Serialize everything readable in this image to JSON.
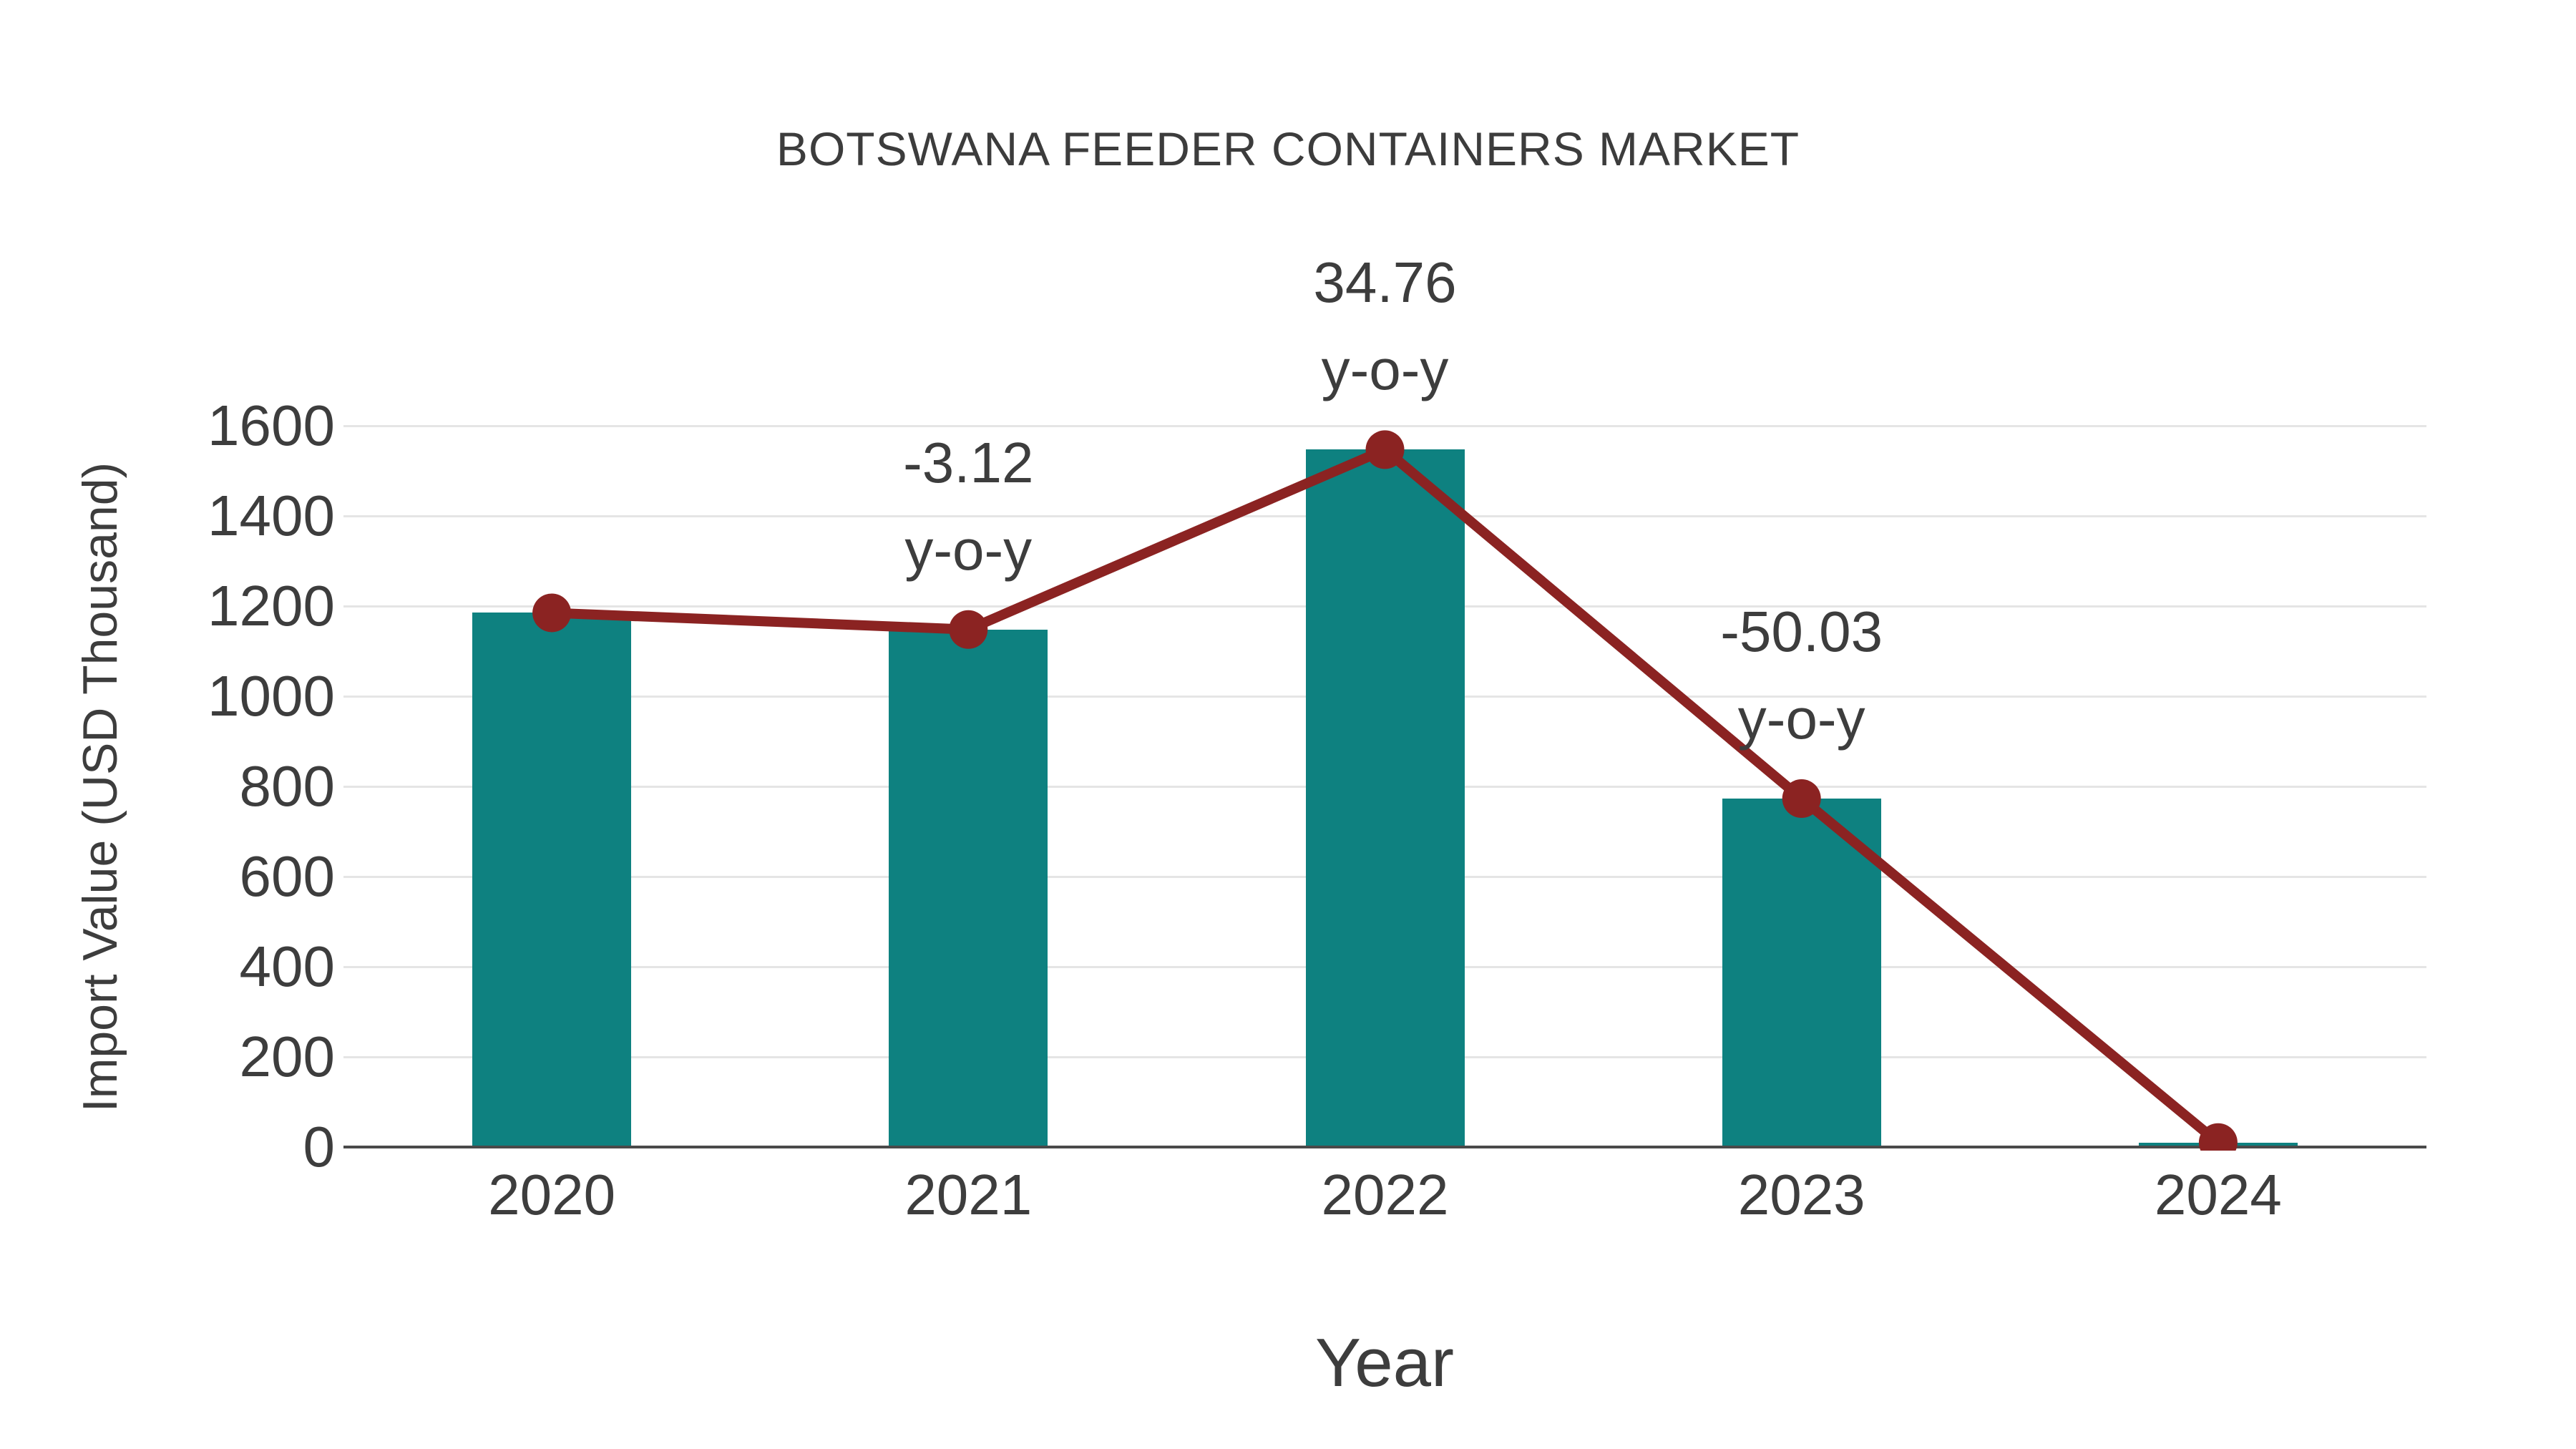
{
  "header": {
    "title": "BOTSWANA FEEDER CONTAINERS MARKET"
  },
  "colors": {
    "bar": "#0E8180",
    "line": "#8B2322",
    "marker": "#8B2322",
    "text": "#3D3D3D",
    "grid": "#E5E5E5",
    "axis": "#4A4A4A",
    "background": "#FFFFFF"
  },
  "chart_data": {
    "type": "bar",
    "title": "BOTSWANA FEEDER CONTAINERS MARKET",
    "xlabel": "Year",
    "ylabel": "Import Value (USD Thousand)",
    "categories": [
      "2020",
      "2021",
      "2022",
      "2023",
      "2024"
    ],
    "series": [
      {
        "name": "Import Value (USD Thousand)",
        "type": "bar",
        "color": "#0E8180",
        "values": [
          1185,
          1148,
          1547,
          773,
          10
        ]
      },
      {
        "name": "y-o-y trend",
        "type": "line",
        "color": "#8B2322",
        "values": [
          1185,
          1148,
          1547,
          773,
          10
        ]
      }
    ],
    "annotations": [
      {
        "category": "2021",
        "value_label": "-3.12",
        "suffix": "y-o-y"
      },
      {
        "category": "2022",
        "value_label": "34.76",
        "suffix": "y-o-y"
      },
      {
        "category": "2023",
        "value_label": "-50.03",
        "suffix": "y-o-y"
      }
    ],
    "ylim": [
      0,
      1600
    ],
    "ytick_step": 200,
    "grid": true,
    "legend_position": "none"
  }
}
